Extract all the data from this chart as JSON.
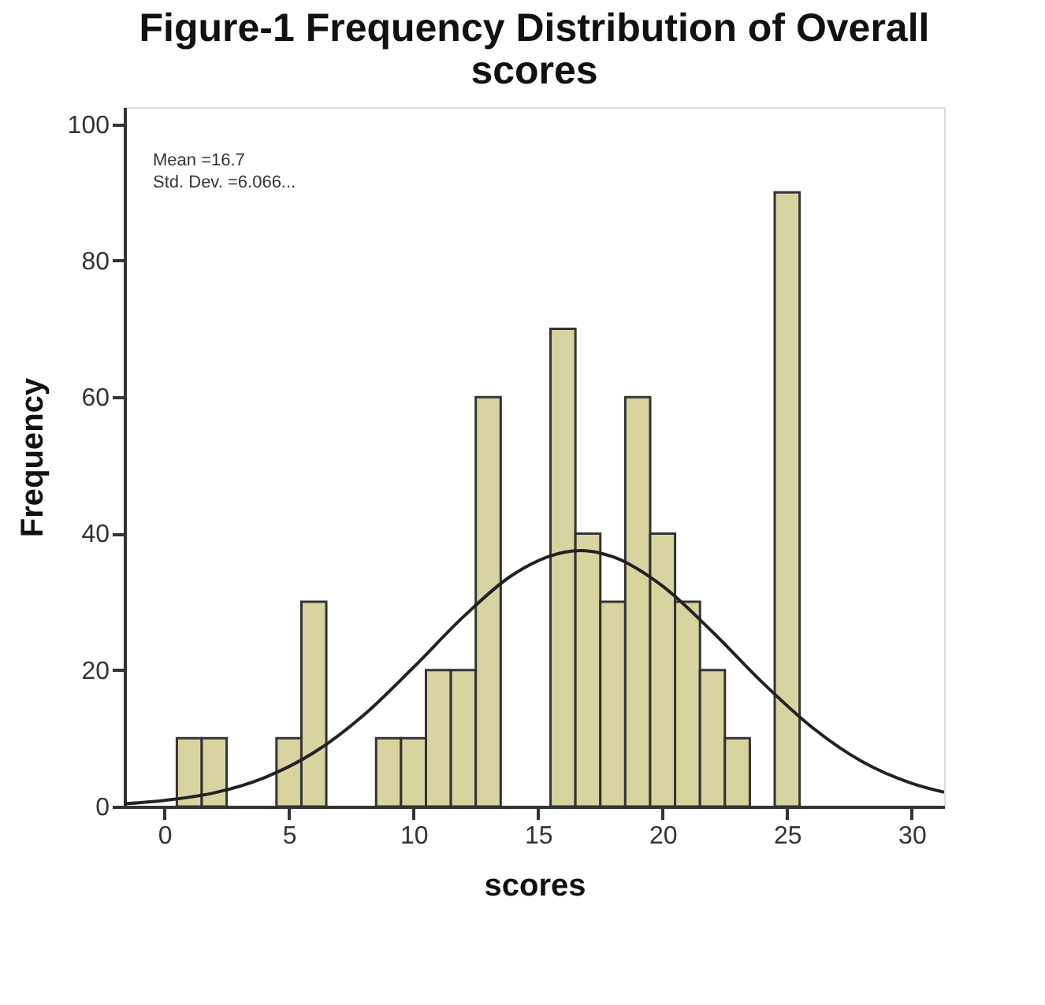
{
  "chart_data": {
    "type": "histogram",
    "title": "Figure-1 Frequency Distribution of Overall scores",
    "xlabel": "scores",
    "ylabel": "Frequency",
    "bins": [
      0.5,
      1.5,
      2.5,
      3.5,
      4.5,
      5.5,
      6.5,
      7.5,
      8.5,
      9.5,
      10.5,
      11.5,
      12.5,
      13.5,
      14.5,
      15.5,
      16.5,
      17.5,
      18.5,
      19.5,
      20.5,
      21.5,
      22.5,
      23.5,
      24.5,
      25.5
    ],
    "values": [
      10,
      10,
      0,
      0,
      10,
      30,
      0,
      0,
      10,
      10,
      20,
      20,
      60,
      0,
      0,
      70,
      40,
      30,
      60,
      40,
      30,
      20,
      10,
      0,
      90
    ],
    "color": "#d8d4a0",
    "series": [
      {
        "type": "line",
        "color": "#222222",
        "x": [
          -1.6,
          0,
          2,
          4,
          6,
          8,
          10,
          12,
          14,
          16.7,
          18,
          20,
          22,
          24,
          26,
          28,
          30,
          31.3
        ],
        "values": [
          0.4,
          0.9,
          2.0,
          4.2,
          7.9,
          13.4,
          20.4,
          27.8,
          34.0,
          37.5,
          36.6,
          32.3,
          25.6,
          18.2,
          11.6,
          6.6,
          3.4,
          2.1
        ]
      }
    ],
    "annotations": [
      "Mean =16.7",
      "Std. Dev. =6.066..."
    ],
    "xlim": [
      -1.6,
      31.3
    ],
    "ylim": [
      0,
      102.5
    ],
    "xticks": [
      0,
      5,
      10,
      15,
      20,
      25,
      30
    ],
    "yticks": [
      0,
      20,
      40,
      60,
      80,
      100
    ],
    "grid": false
  }
}
